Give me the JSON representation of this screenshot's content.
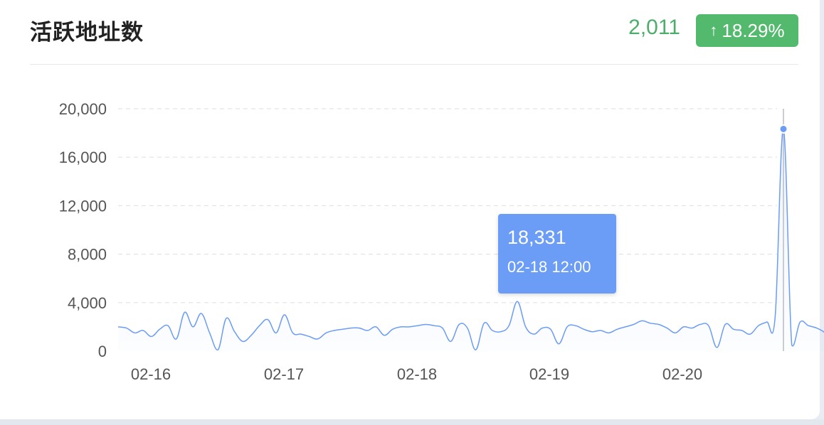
{
  "header": {
    "title": "活跃地址数",
    "value": "2,011",
    "change": "18.29%",
    "change_icon": "arrow-up-icon"
  },
  "tooltip": {
    "value": "18,331",
    "time": "02-18 12:00"
  },
  "colors": {
    "line": "#6b9cf6",
    "value_green": "#4cae6a",
    "badge_green": "#53b96d",
    "tooltip_bg": "#6b9cf6",
    "grid": "#e2e4e8"
  },
  "chart_data": {
    "type": "line",
    "title": "",
    "xlabel": "",
    "ylabel": "",
    "ylim": [
      0,
      20000
    ],
    "yticks": [
      "0",
      "4,000",
      "8,000",
      "12,000",
      "16,000",
      "20,000"
    ],
    "yticks_values": [
      0,
      4000,
      8000,
      12000,
      16000,
      20000
    ],
    "xticks": [
      "02-16",
      "02-17",
      "02-18",
      "02-19",
      "02-20"
    ],
    "x_start": "02-15 20:00",
    "x_end": "02-20 17:00",
    "grid": true,
    "series": [
      {
        "values": [
          2000,
          1900,
          1500,
          1700,
          1200,
          1800,
          2100,
          1000,
          3200,
          2000,
          3100,
          1500,
          100,
          2700,
          1600,
          800,
          1300,
          2100,
          2600,
          1500,
          3000,
          1500,
          1400,
          1200,
          1000,
          1500,
          1700,
          1800,
          1900,
          1900,
          1700,
          2000,
          1300,
          1800,
          2000,
          2000,
          2100,
          2200,
          2100,
          1900,
          800,
          2200,
          1900,
          100,
          2300,
          1700,
          1600,
          2100,
          4100,
          2000,
          1400,
          1900,
          1800,
          600,
          2000,
          2100,
          1800,
          1600,
          1700,
          1500,
          1800,
          2000,
          2200,
          2500,
          2300,
          2200,
          1900,
          1500,
          2000,
          1900,
          2200,
          2100,
          300,
          2200,
          1800,
          1700,
          1400,
          2100,
          2400,
          2800,
          18331,
          500,
          2400,
          2100,
          1900,
          1500,
          700,
          1700,
          1900,
          1400,
          1300,
          2200,
          1700,
          1500,
          1900,
          1800,
          1500,
          1900,
          1500,
          1300,
          1400,
          700,
          2000,
          1400,
          1200,
          900,
          1300,
          1500,
          1700,
          2500,
          3300,
          2000,
          1300,
          1200,
          1300,
          1200,
          1100,
          1200,
          1800,
          300,
          1500,
          1800,
          2000,
          1400,
          1300,
          1100,
          600,
          1500,
          2600,
          2700,
          1500,
          1400,
          1300,
          1500,
          1400,
          1600,
          1700,
          2000,
          2200,
          3500,
          2000,
          1300,
          2000,
          1100,
          900,
          1400,
          1000,
          2000
        ]
      }
    ],
    "highlight": {
      "x": "02-18 12:00",
      "y": 18331
    }
  }
}
